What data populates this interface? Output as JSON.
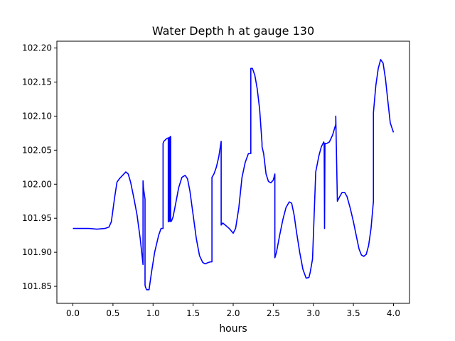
{
  "chart_data": {
    "type": "line",
    "title": "Water Depth h at gauge 130",
    "xlabel": "hours",
    "ylabel": "",
    "xlim": [
      -0.2,
      4.2
    ],
    "ylim": [
      101.825,
      102.21
    ],
    "xticks": [
      0.0,
      0.5,
      1.0,
      1.5,
      2.0,
      2.5,
      3.0,
      3.5,
      4.0
    ],
    "xtick_labels": [
      "0.0",
      "0.5",
      "1.0",
      "1.5",
      "2.0",
      "2.5",
      "3.0",
      "3.5",
      "4.0"
    ],
    "yticks": [
      101.85,
      101.9,
      101.95,
      102.0,
      102.05,
      102.1,
      102.15,
      102.2
    ],
    "ytick_labels": [
      "101.85",
      "101.90",
      "101.95",
      "102.00",
      "102.05",
      "102.10",
      "102.15",
      "102.20"
    ],
    "grid": false,
    "series": [
      {
        "color": "#0000ff",
        "x": [
          0.0,
          0.1,
          0.2,
          0.3,
          0.4,
          0.45,
          0.48,
          0.52,
          0.55,
          0.58,
          0.62,
          0.66,
          0.69,
          0.72,
          0.76,
          0.8,
          0.84,
          0.875,
          0.875,
          0.88,
          0.9,
          0.9,
          0.905,
          0.92,
          0.95,
          0.98,
          1.02,
          1.07,
          1.1,
          1.125,
          1.125,
          1.135,
          1.17,
          1.19,
          1.19,
          1.195,
          1.2,
          1.2,
          1.205,
          1.21,
          1.21,
          1.215,
          1.22,
          1.22,
          1.23,
          1.25,
          1.28,
          1.32,
          1.36,
          1.4,
          1.43,
          1.46,
          1.5,
          1.54,
          1.58,
          1.62,
          1.65,
          1.69,
          1.72,
          1.735,
          1.735,
          1.76,
          1.79,
          1.82,
          1.85,
          1.85,
          1.87,
          1.9,
          1.95,
          2.0,
          2.03,
          2.07,
          2.11,
          2.15,
          2.19,
          2.22,
          2.22,
          2.24,
          2.27,
          2.3,
          2.33,
          2.36,
          2.36,
          2.38,
          2.41,
          2.44,
          2.47,
          2.5,
          2.52,
          2.52,
          2.54,
          2.58,
          2.62,
          2.66,
          2.7,
          2.73,
          2.76,
          2.79,
          2.83,
          2.87,
          2.91,
          2.945,
          2.945,
          2.96,
          2.99,
          3.03,
          3.07,
          3.1,
          3.13,
          3.13,
          3.135,
          3.14,
          3.14,
          3.145,
          3.15,
          3.17,
          3.2,
          3.24,
          3.28,
          3.28,
          3.3,
          3.33,
          3.36,
          3.39,
          3.42,
          3.46,
          3.5,
          3.54,
          3.57,
          3.6,
          3.63,
          3.66,
          3.69,
          3.72,
          3.75,
          3.75,
          3.755,
          3.78,
          3.81,
          3.84,
          3.87,
          3.9,
          3.93,
          3.96,
          4.0
        ],
        "y": [
          101.935,
          101.935,
          101.935,
          101.934,
          101.935,
          101.937,
          101.945,
          101.98,
          102.003,
          102.008,
          102.013,
          102.018,
          102.015,
          102.003,
          101.98,
          101.955,
          101.92,
          101.882,
          102.005,
          101.995,
          101.978,
          101.852,
          101.849,
          101.845,
          101.845,
          101.87,
          101.9,
          101.925,
          101.935,
          101.935,
          102.06,
          102.063,
          102.067,
          102.068,
          101.945,
          102.068,
          102.068,
          101.945,
          102.068,
          102.069,
          101.946,
          102.07,
          102.07,
          101.945,
          101.946,
          101.952,
          101.97,
          101.995,
          102.01,
          102.013,
          102.008,
          101.99,
          101.955,
          101.92,
          101.895,
          101.885,
          101.883,
          101.885,
          101.886,
          101.886,
          102.01,
          102.015,
          102.025,
          102.04,
          102.063,
          101.94,
          101.943,
          101.94,
          101.935,
          101.928,
          101.935,
          101.965,
          102.01,
          102.032,
          102.045,
          102.045,
          102.17,
          102.17,
          102.16,
          102.14,
          102.11,
          102.06,
          102.055,
          102.045,
          102.015,
          102.004,
          102.002,
          102.006,
          102.015,
          101.892,
          101.9,
          101.925,
          101.948,
          101.966,
          101.974,
          101.972,
          101.955,
          101.93,
          101.9,
          101.875,
          101.862,
          101.863,
          101.863,
          101.87,
          101.89,
          102.018,
          102.042,
          102.055,
          102.062,
          102.062,
          102.06,
          101.936,
          101.935,
          102.058,
          102.06,
          102.06,
          102.062,
          102.072,
          102.088,
          102.1,
          101.975,
          101.982,
          101.988,
          101.988,
          101.982,
          101.965,
          101.945,
          101.922,
          101.905,
          101.896,
          101.894,
          101.897,
          101.91,
          101.935,
          101.975,
          102.105,
          102.112,
          102.145,
          102.17,
          102.183,
          102.178,
          102.155,
          102.122,
          102.09,
          102.076
        ]
      }
    ]
  }
}
